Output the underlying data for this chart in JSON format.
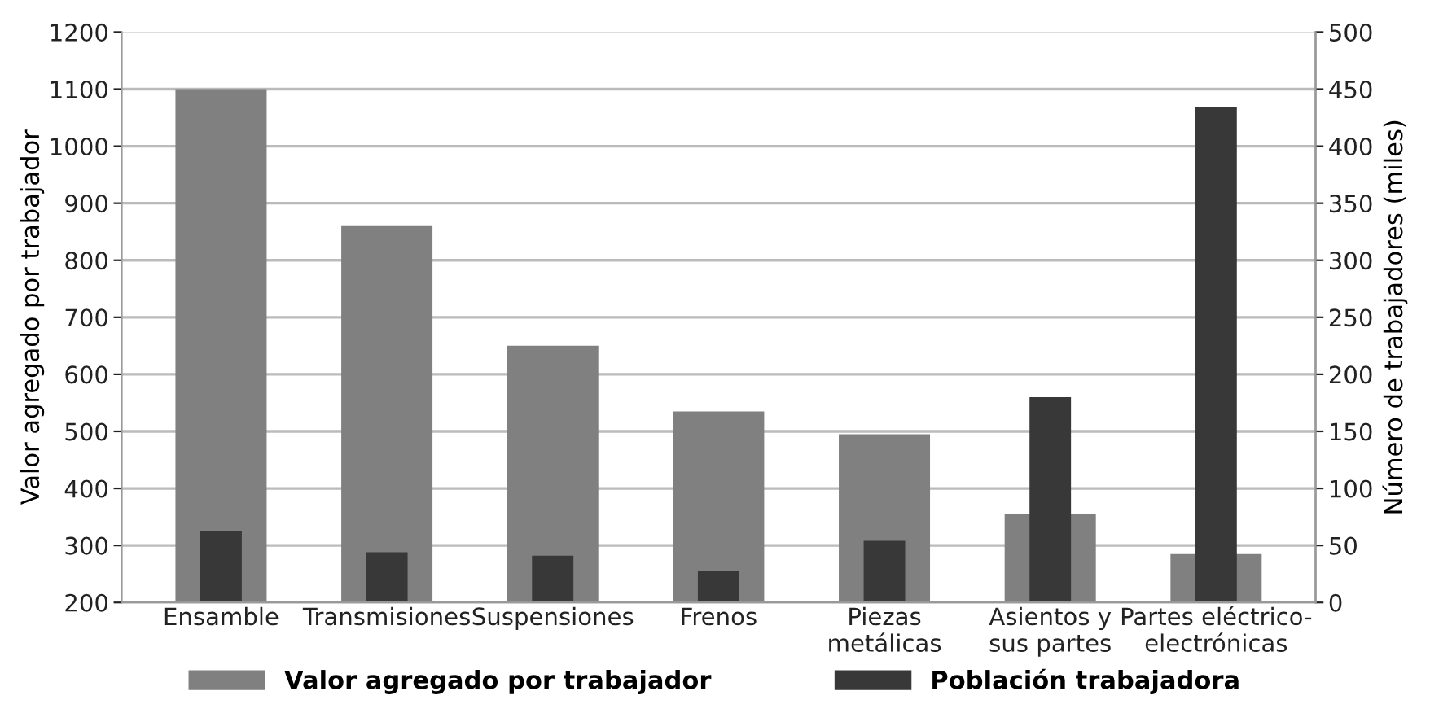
{
  "chart_data": {
    "type": "bar",
    "ylabel": "Valor agregado por trabajador",
    "y2label": "Número de trabajadores (miles)",
    "categories": [
      "Ensamble",
      "Transmisiones",
      "Suspensiones",
      "Frenos",
      "Piezas\nmetálicas",
      "Asientos y\nsus partes",
      "Partes eléctrico-\nelectrónicas"
    ],
    "series": [
      {
        "name": "Valor agregado por trabajador",
        "color": "#808080",
        "values": [
          1100,
          860,
          650,
          535,
          495,
          355,
          285
        ]
      },
      {
        "name": "Población trabajadora",
        "color": "#383838",
        "axis": "y2",
        "values": [
          63,
          44,
          41,
          28,
          54,
          180,
          434
        ]
      }
    ],
    "ylim": [
      200,
      1200
    ],
    "yticks": [
      200,
      300,
      400,
      500,
      600,
      700,
      800,
      900,
      1000,
      1100,
      1200
    ],
    "y2lim": [
      0,
      500
    ],
    "y2ticks": [
      0,
      50,
      100,
      150,
      200,
      250,
      300,
      350,
      400,
      450,
      500
    ],
    "grid": "y",
    "legend": "bottom"
  }
}
